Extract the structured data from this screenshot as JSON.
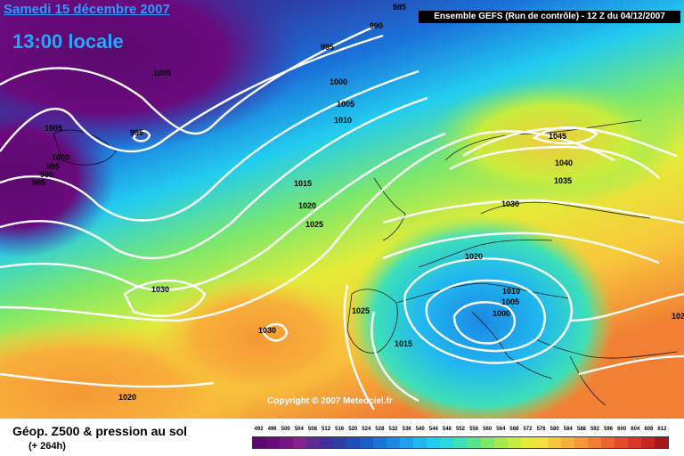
{
  "header": {
    "date_line": "Samedi 15 décembre 2007",
    "time_line": "13:00 locale",
    "run_info": "Ensemble GEFS (Run de contrôle)  - 12 Z du 04/12/2007"
  },
  "copyright": "Copyright © 2007 Meteociel.fr",
  "footer": {
    "title": "Géop. Z500 & pression au sol",
    "subtitle": "(+ 264h)"
  },
  "legend": {
    "values": [
      "492",
      "496",
      "500",
      "504",
      "508",
      "512",
      "516",
      "520",
      "524",
      "528",
      "532",
      "536",
      "540",
      "544",
      "548",
      "552",
      "556",
      "560",
      "564",
      "568",
      "572",
      "576",
      "580",
      "584",
      "588",
      "592",
      "596",
      "600",
      "604",
      "608",
      "612"
    ],
    "colors": [
      "#5a0a6e",
      "#6a0a7c",
      "#7a1486",
      "#86208c",
      "#5c2a92",
      "#3f2f9c",
      "#2d3ea6",
      "#1f4fb8",
      "#1a5ec8",
      "#1a72da",
      "#1c88e4",
      "#1ea0ec",
      "#20b8f0",
      "#22ccf0",
      "#2ad8e0",
      "#3ee0b8",
      "#5ae48e",
      "#7ee86a",
      "#a6ea4c",
      "#c8ec3c",
      "#e4ec38",
      "#f4e040",
      "#f8c83c",
      "#f8b03a",
      "#f69836",
      "#f28034",
      "#ec6430",
      "#e44a2c",
      "#dc3428",
      "#c82424",
      "#a81818"
    ]
  },
  "isobars": [
    {
      "text": "985"
    },
    {
      "text": "990"
    },
    {
      "text": "995"
    },
    {
      "text": "1005"
    },
    {
      "text": "1000"
    },
    {
      "text": "1005"
    },
    {
      "text": "1010"
    },
    {
      "text": "995"
    },
    {
      "text": "1005"
    },
    {
      "text": "1000"
    },
    {
      "text": "995"
    },
    {
      "text": "990"
    },
    {
      "text": "985"
    },
    {
      "text": "1015"
    },
    {
      "text": "1020"
    },
    {
      "text": "1025"
    },
    {
      "text": "1030"
    },
    {
      "text": "1030"
    },
    {
      "text": "1020"
    },
    {
      "text": "1045"
    },
    {
      "text": "1040"
    },
    {
      "text": "1035"
    },
    {
      "text": "1030"
    },
    {
      "text": "1020"
    },
    {
      "text": "1010"
    },
    {
      "text": "1005"
    },
    {
      "text": "1000"
    },
    {
      "text": "1025"
    },
    {
      "text": "1015"
    },
    {
      "text": "102"
    }
  ]
}
